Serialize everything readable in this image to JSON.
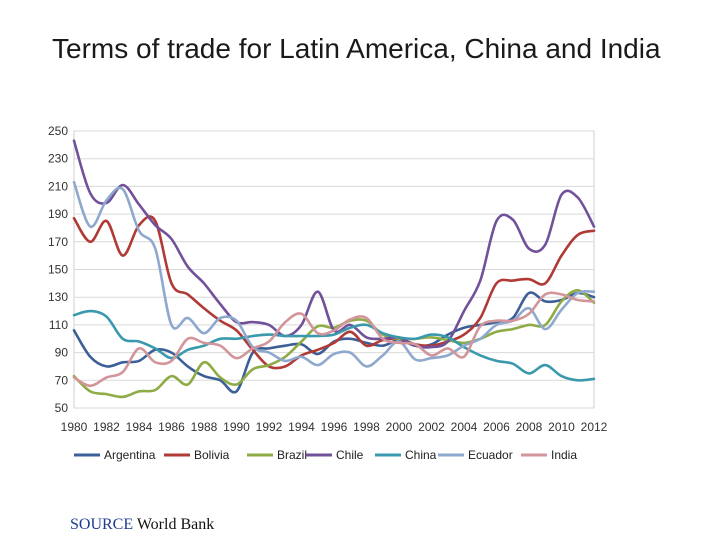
{
  "title": "Terms of trade for Latin America, China and India",
  "source": {
    "label": "SOURCE",
    "text": "World Bank"
  },
  "chart_data": {
    "type": "line",
    "title": "Terms of trade for Latin America, China and India",
    "xlabel": "",
    "ylabel": "",
    "ylim": [
      50,
      250
    ],
    "yticks": [
      50,
      70,
      90,
      110,
      130,
      150,
      170,
      190,
      210,
      230,
      250
    ],
    "xticks": [
      1980,
      1982,
      1984,
      1986,
      1988,
      1990,
      1992,
      1994,
      1996,
      1998,
      2000,
      2002,
      2004,
      2006,
      2008,
      2010,
      2012
    ],
    "grid": "horizontal",
    "legend": "bottom",
    "x": [
      1980,
      1981,
      1982,
      1983,
      1984,
      1985,
      1986,
      1987,
      1988,
      1989,
      1990,
      1991,
      1992,
      1993,
      1994,
      1995,
      1996,
      1997,
      1998,
      1999,
      2000,
      2001,
      2002,
      2003,
      2004,
      2005,
      2006,
      2007,
      2008,
      2009,
      2010,
      2011,
      2012
    ],
    "series": [
      {
        "name": "Argentina",
        "color": "#3c5f98",
        "values": [
          106,
          87,
          80,
          83,
          84,
          92,
          90,
          80,
          73,
          70,
          62,
          90,
          93,
          95,
          96,
          89,
          98,
          100,
          97,
          95,
          99,
          95,
          96,
          103,
          108,
          110,
          112,
          115,
          133,
          127,
          128,
          133,
          130
        ]
      },
      {
        "name": "Bolivia",
        "color": "#b03a35",
        "values": [
          187,
          170,
          185,
          160,
          182,
          185,
          140,
          132,
          122,
          113,
          106,
          92,
          80,
          80,
          88,
          92,
          97,
          105,
          95,
          99,
          100,
          96,
          95,
          98,
          103,
          115,
          140,
          142,
          143,
          140,
          160,
          175,
          178
        ]
      },
      {
        "name": "Brazil",
        "color": "#8eab45",
        "values": [
          73,
          62,
          60,
          58,
          62,
          63,
          73,
          67,
          83,
          72,
          67,
          78,
          81,
          87,
          98,
          109,
          108,
          113,
          113,
          103,
          100,
          100,
          101,
          99,
          97,
          100,
          105,
          107,
          110,
          110,
          127,
          135,
          126
        ]
      },
      {
        "name": "Chile",
        "color": "#71519a",
        "values": [
          243,
          205,
          198,
          211,
          197,
          182,
          172,
          152,
          140,
          125,
          112,
          112,
          110,
          102,
          110,
          134,
          106,
          110,
          101,
          100,
          101,
          95,
          94,
          98,
          120,
          142,
          185,
          186,
          165,
          168,
          204,
          202,
          181
        ]
      },
      {
        "name": "China",
        "color": "#3a99ad",
        "values": [
          117,
          120,
          116,
          100,
          98,
          93,
          86,
          92,
          95,
          100,
          100,
          102,
          103,
          102,
          102,
          102,
          103,
          108,
          110,
          104,
          101,
          100,
          103,
          101,
          94,
          88,
          84,
          82,
          75,
          81,
          73,
          70,
          71
        ]
      },
      {
        "name": "Ecuador",
        "color": "#8ea9cd",
        "values": [
          213,
          181,
          200,
          208,
          178,
          165,
          110,
          115,
          104,
          115,
          113,
          94,
          90,
          84,
          87,
          81,
          89,
          90,
          80,
          88,
          98,
          85,
          86,
          88,
          95,
          100,
          110,
          113,
          122,
          107,
          121,
          133,
          134
        ]
      },
      {
        "name": "India",
        "color": "#d2959a",
        "values": [
          72,
          66,
          72,
          76,
          93,
          83,
          84,
          100,
          97,
          95,
          86,
          93,
          98,
          112,
          118,
          104,
          106,
          114,
          115,
          100,
          97,
          96,
          88,
          93,
          87,
          109,
          113,
          113,
          118,
          132,
          132,
          128,
          127
        ]
      }
    ]
  }
}
